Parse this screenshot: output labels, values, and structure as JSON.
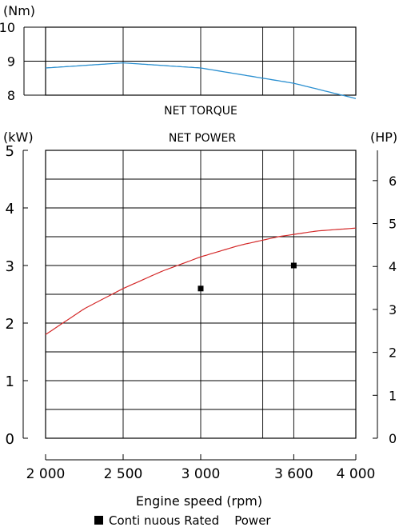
{
  "colors": {
    "torque_line": "#2a8fd0",
    "power_line": "#d42a2a",
    "frame": "#000000"
  },
  "chart_data": [
    {
      "type": "line",
      "title": "NET TORQUE",
      "unit": "(Nm)",
      "x": [
        2000,
        2500,
        3000,
        3400,
        3600,
        4000
      ],
      "series": [
        {
          "values": [
            8.8,
            8.95,
            8.8,
            8.5,
            8.35,
            7.9
          ]
        }
      ],
      "xlim": [
        2000,
        4000
      ],
      "ylim": [
        8,
        10
      ],
      "y_ticks": [
        "10",
        "9",
        "8"
      ],
      "grid": true
    },
    {
      "type": "line",
      "title": "NET POWER",
      "unit_left": "(kW)",
      "unit_right": "(HP)",
      "xlabel": "Engine speed (rpm)",
      "x_tick_labels": [
        "2 000",
        "2 500",
        "3 000",
        "3 600",
        "4 000"
      ],
      "x_tick_values": [
        2000,
        2500,
        3000,
        3600,
        4000
      ],
      "xlim": [
        2000,
        4000
      ],
      "ylim": [
        0,
        5
      ],
      "y_ticks_left": [
        "5",
        "4",
        "3",
        "2",
        "1",
        "0"
      ],
      "y_ticks_right": [
        "6",
        "5",
        "4",
        "3",
        "2",
        "1",
        "0"
      ],
      "y_ticks_right_values": [
        6,
        5,
        4,
        3,
        2,
        1,
        0
      ],
      "hp_per_kw": 1.341,
      "grid": true,
      "series": [
        {
          "x": [
            2000,
            2250,
            2500,
            2750,
            3000,
            3250,
            3500,
            3750,
            4000
          ],
          "values": [
            1.8,
            2.25,
            2.6,
            2.9,
            3.15,
            3.35,
            3.5,
            3.6,
            3.65
          ]
        }
      ],
      "rated_points": {
        "x": [
          3000,
          3600
        ],
        "values": [
          2.6,
          3.0
        ]
      },
      "legend": "Conti nuous Rated    Power"
    }
  ]
}
